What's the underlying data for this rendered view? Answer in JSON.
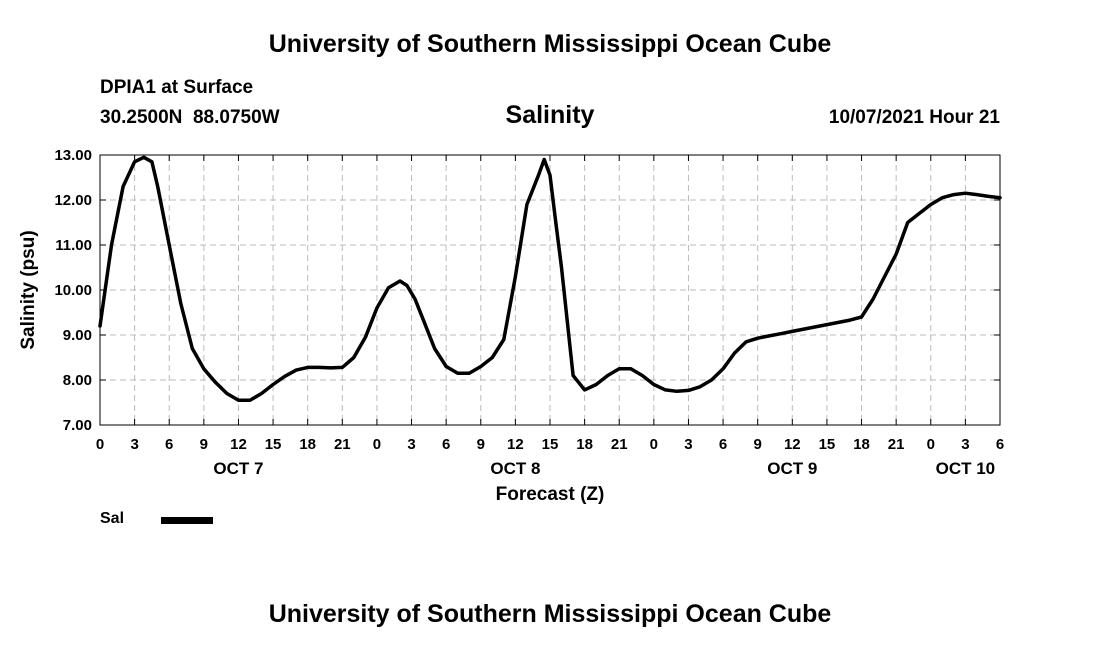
{
  "header": {
    "title": "University of Southern Mississippi Ocean Cube",
    "station": "DPIA1 at Surface",
    "coords": "30.2500N  88.0750W",
    "parameter": "Salinity",
    "datestamp": "10/07/2021 Hour 21"
  },
  "footer": {
    "title": "University of Southern Mississippi Ocean Cube"
  },
  "chart_data": {
    "type": "line",
    "title": "Salinity",
    "xlabel": "Forecast (Z)",
    "ylabel": "Salinity (psu)",
    "ylim": [
      7.0,
      13.0
    ],
    "xlim": [
      0,
      78
    ],
    "grid": true,
    "legend_position": "bottom-left",
    "y_ticks": [
      "7.00",
      "8.00",
      "9.00",
      "10.00",
      "11.00",
      "12.00",
      "13.00"
    ],
    "x_ticks": [
      "0",
      "3",
      "6",
      "9",
      "12",
      "15",
      "18",
      "21",
      "0",
      "3",
      "6",
      "9",
      "12",
      "15",
      "18",
      "21",
      "0",
      "3",
      "6",
      "9",
      "12",
      "15",
      "18",
      "21",
      "0",
      "3",
      "6"
    ],
    "day_labels": [
      {
        "label": "OCT 7",
        "hour": 12
      },
      {
        "label": "OCT 8",
        "hour": 36
      },
      {
        "label": "OCT 9",
        "hour": 60
      },
      {
        "label": "OCT 10",
        "hour": 75
      }
    ],
    "series": [
      {
        "name": "Sal",
        "color": "#000000",
        "x": [
          0,
          1,
          2,
          3,
          3.8,
          4.5,
          5,
          6,
          7,
          8,
          9,
          10,
          11,
          12,
          13,
          14,
          15,
          16,
          17,
          18,
          19,
          20,
          21,
          22,
          23,
          24,
          25,
          26,
          26.6,
          27.3,
          28,
          29,
          30,
          31,
          32,
          33,
          34,
          35,
          36,
          37,
          38,
          38.5,
          39,
          39.5,
          40,
          41,
          42,
          43,
          44,
          45,
          46,
          47,
          48,
          49,
          50,
          51,
          52,
          53,
          54,
          55,
          56,
          57,
          58,
          59,
          60,
          61,
          62,
          63,
          64,
          65,
          66,
          67,
          68,
          69,
          70,
          71,
          72,
          73,
          74,
          75,
          76,
          77,
          78
        ],
        "values": [
          9.2,
          11.0,
          12.3,
          12.85,
          12.95,
          12.85,
          12.3,
          11.0,
          9.7,
          8.7,
          8.25,
          7.95,
          7.7,
          7.55,
          7.55,
          7.7,
          7.9,
          8.08,
          8.22,
          8.28,
          8.28,
          8.27,
          8.28,
          8.5,
          8.95,
          9.6,
          10.05,
          10.2,
          10.1,
          9.8,
          9.35,
          8.7,
          8.3,
          8.15,
          8.15,
          8.3,
          8.5,
          8.9,
          10.3,
          11.9,
          12.55,
          12.9,
          12.55,
          11.5,
          10.5,
          8.1,
          7.78,
          7.9,
          8.1,
          8.25,
          8.25,
          8.1,
          7.9,
          7.78,
          7.75,
          7.77,
          7.85,
          8.0,
          8.25,
          8.6,
          8.85,
          8.93,
          8.98,
          9.03,
          9.08,
          9.13,
          9.18,
          9.23,
          9.28,
          9.33,
          9.4,
          9.8,
          10.3,
          10.8,
          11.5,
          11.7,
          11.9,
          12.05,
          12.12,
          12.15,
          12.12,
          12.08,
          12.05
        ]
      }
    ]
  }
}
